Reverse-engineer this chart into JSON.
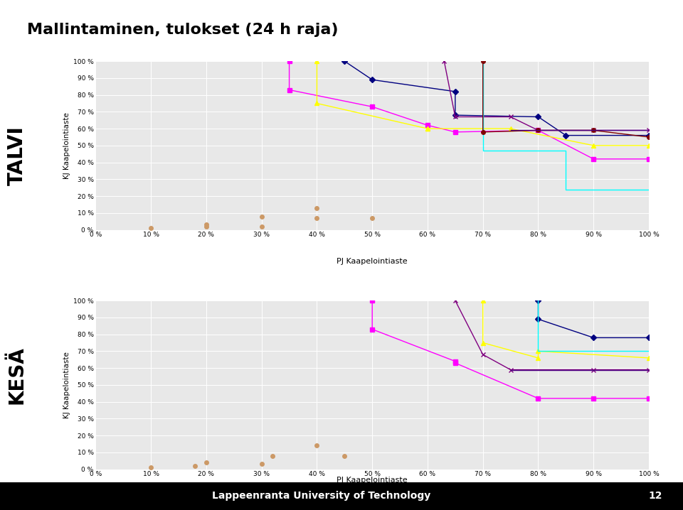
{
  "title": "Mallintaminen, tulokset (24 h raja)",
  "xlabel": "PJ Kaapelointiaste",
  "ylabel": "KJ Kaapelointiaste",
  "label_talvi": "TALVI",
  "label_kesa": "KESÄ",
  "footer": "Lappeenranta University of Technology",
  "page_num": "12",
  "bg_color": "#ffffff",
  "plot_bg": "#e8e8e8",
  "talvi_series": [
    {
      "color": "#ff00ff",
      "marker": "s",
      "marker_size": 4,
      "linestyle": "-",
      "x": [
        35,
        35,
        50,
        60,
        65,
        80,
        90,
        100
      ],
      "y": [
        100,
        83,
        73,
        62,
        58,
        59,
        42,
        42
      ]
    },
    {
      "color": "#ffff00",
      "marker": "^",
      "marker_size": 4,
      "linestyle": "-",
      "x": [
        40,
        40,
        60,
        60,
        75,
        90,
        100
      ],
      "y": [
        100,
        75,
        60,
        60,
        60,
        50,
        50
      ]
    },
    {
      "color": "#000080",
      "marker": "D",
      "marker_size": 4,
      "linestyle": "-",
      "x": [
        45,
        50,
        65,
        65,
        80,
        85,
        100
      ],
      "y": [
        100,
        89,
        82,
        68,
        67,
        56,
        56
      ]
    },
    {
      "color": "#800080",
      "marker": "x",
      "marker_size": 5,
      "linestyle": "-",
      "x": [
        63,
        65,
        75,
        80,
        90,
        100
      ],
      "y": [
        100,
        67,
        67,
        59,
        59,
        59
      ]
    },
    {
      "color": "#00ffff",
      "marker": null,
      "marker_size": 4,
      "linestyle": "-",
      "x": [
        70,
        70,
        70,
        85,
        85,
        100
      ],
      "y": [
        100,
        61,
        47,
        47,
        24,
        24
      ]
    },
    {
      "color": "#800000",
      "marker": "o",
      "marker_size": 4,
      "linestyle": "-",
      "x": [
        70,
        70,
        80,
        90,
        100
      ],
      "y": [
        100,
        58,
        59,
        59,
        55
      ]
    },
    {
      "color": "#4B0082",
      "marker": null,
      "marker_size": 4,
      "linestyle": "-",
      "x": [
        75,
        90,
        100
      ],
      "y": [
        59,
        59,
        59
      ]
    },
    {
      "color": "#cc9966",
      "marker": "o",
      "marker_size": 5,
      "linestyle": "None",
      "x": [
        10,
        20,
        20,
        30,
        30,
        40,
        40,
        50
      ],
      "y": [
        1,
        2,
        3,
        2,
        8,
        13,
        7,
        7
      ]
    }
  ],
  "kesa_series": [
    {
      "color": "#ff00ff",
      "marker": "s",
      "marker_size": 4,
      "linestyle": "-",
      "x": [
        50,
        50,
        65,
        65,
        80,
        90,
        100
      ],
      "y": [
        100,
        83,
        64,
        63,
        42,
        42,
        42
      ]
    },
    {
      "color": "#ffff00",
      "marker": "^",
      "marker_size": 4,
      "linestyle": "-",
      "x": [
        70,
        70,
        80,
        80,
        100
      ],
      "y": [
        100,
        75,
        66,
        70,
        66
      ]
    },
    {
      "color": "#000080",
      "marker": "D",
      "marker_size": 4,
      "linestyle": "-",
      "x": [
        80,
        80,
        90,
        100
      ],
      "y": [
        100,
        89,
        78,
        78
      ]
    },
    {
      "color": "#800080",
      "marker": "x",
      "marker_size": 5,
      "linestyle": "-",
      "x": [
        65,
        70,
        75,
        90,
        100
      ],
      "y": [
        100,
        68,
        59,
        59,
        59
      ]
    },
    {
      "color": "#00ffff",
      "marker": null,
      "marker_size": 4,
      "linestyle": "-",
      "x": [
        80,
        80,
        90,
        100
      ],
      "y": [
        100,
        70,
        70,
        70
      ]
    },
    {
      "color": "#4B0082",
      "marker": null,
      "marker_size": 4,
      "linestyle": "-",
      "x": [
        75,
        90,
        100
      ],
      "y": [
        59,
        59,
        59
      ]
    },
    {
      "color": "#cc9966",
      "marker": "o",
      "marker_size": 5,
      "linestyle": "None",
      "x": [
        10,
        18,
        20,
        30,
        32,
        40,
        45
      ],
      "y": [
        1,
        2,
        4,
        3,
        8,
        14,
        8
      ]
    }
  ],
  "tick_labels": [
    "0 %",
    "10 %",
    "20 %",
    "30 %",
    "40 %",
    "50 %",
    "60 %",
    "70 %",
    "80 %",
    "90 %",
    "100 %"
  ],
  "tick_vals": [
    0,
    10,
    20,
    30,
    40,
    50,
    60,
    70,
    80,
    90,
    100
  ]
}
